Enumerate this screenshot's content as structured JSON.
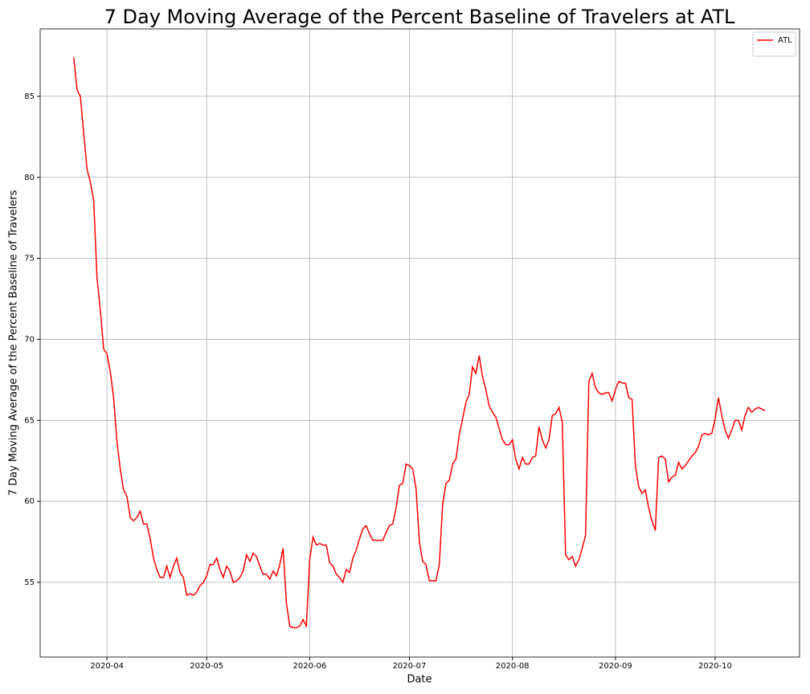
{
  "chart_data": {
    "type": "line",
    "title": "7 Day Moving Average of the Percent Baseline of Travelers at ATL",
    "x_label": "Date",
    "y_label": "7 Day Moving Average of the Percent Baseline of Travelers",
    "x": [
      82,
      83,
      84,
      85,
      86,
      87,
      88,
      89,
      90,
      91,
      92,
      93,
      94,
      95,
      96,
      97,
      98,
      99,
      100,
      101,
      102,
      103,
      104,
      105,
      106,
      107,
      108,
      109,
      110,
      111,
      112,
      113,
      114,
      115,
      116,
      117,
      118,
      119,
      120,
      121,
      122,
      123,
      124,
      125,
      126,
      127,
      128,
      129,
      130,
      131,
      132,
      133,
      134,
      135,
      136,
      137,
      138,
      139,
      140,
      141,
      142,
      143,
      144,
      145,
      146,
      147,
      148,
      149,
      150,
      151,
      152,
      153,
      154,
      155,
      156,
      157,
      158,
      159,
      160,
      161,
      162,
      163,
      164,
      165,
      166,
      167,
      168,
      169,
      170,
      171,
      172,
      173,
      174,
      175,
      176,
      177,
      178,
      179,
      180,
      181,
      182,
      183,
      184,
      185,
      186,
      187,
      188,
      189,
      190,
      191,
      192,
      193,
      194,
      195,
      196,
      197,
      198,
      199,
      200,
      201,
      202,
      203,
      204,
      205,
      206,
      207,
      208,
      209,
      210,
      211,
      212,
      213,
      214,
      215,
      216,
      217,
      218,
      219,
      220,
      221,
      222,
      223,
      224,
      225,
      226,
      227,
      228,
      229,
      230,
      231,
      232,
      233,
      234,
      235,
      236,
      237,
      238,
      239,
      240,
      241,
      242,
      243,
      244,
      245,
      246,
      247,
      248,
      249,
      250,
      251,
      252,
      253,
      254,
      255,
      256,
      257,
      258,
      259,
      260,
      261,
      262,
      263,
      264,
      265,
      266,
      267,
      268,
      269,
      270,
      271,
      272,
      273,
      274,
      275,
      276,
      277,
      278,
      279,
      280,
      281,
      282,
      283,
      284,
      285,
      286,
      287,
      288,
      289,
      290
    ],
    "series": [
      {
        "name": "ATL",
        "color": "#ff0000",
        "values": [
          87.4,
          85.4,
          85.0,
          82.7,
          80.5,
          79.7,
          78.6,
          73.8,
          71.8,
          69.4,
          69.1,
          68.0,
          66.4,
          63.7,
          62.0,
          60.7,
          60.3,
          59.0,
          58.8,
          59.0,
          59.4,
          58.6,
          58.6,
          57.7,
          56.5,
          55.8,
          55.3,
          55.3,
          56.0,
          55.3,
          56.0,
          56.5,
          55.6,
          55.3,
          54.2,
          54.3,
          54.2,
          54.4,
          54.8,
          55.0,
          55.4,
          56.1,
          56.1,
          56.5,
          55.8,
          55.3,
          56.0,
          55.7,
          55.0,
          55.1,
          55.3,
          55.7,
          56.7,
          56.3,
          56.8,
          56.6,
          56.0,
          55.5,
          55.5,
          55.2,
          55.7,
          55.4,
          56.1,
          57.1,
          53.7,
          52.3,
          52.2,
          52.2,
          52.3,
          52.7,
          52.3,
          56.4,
          57.8,
          57.3,
          57.4,
          57.3,
          57.3,
          56.2,
          56.0,
          55.5,
          55.3,
          55.0,
          55.8,
          55.6,
          56.5,
          57.0,
          57.7,
          58.3,
          58.5,
          58.0,
          57.6,
          57.6,
          57.6,
          57.6,
          58.1,
          58.5,
          58.6,
          59.6,
          61.0,
          61.1,
          62.3,
          62.2,
          62.0,
          60.8,
          57.5,
          56.3,
          56.1,
          55.1,
          55.1,
          55.1,
          56.1,
          59.8,
          61.1,
          61.3,
          62.3,
          62.6,
          64.1,
          65.1,
          66.1,
          66.6,
          68.3,
          67.9,
          69.0,
          67.7,
          66.9,
          65.9,
          65.5,
          65.2,
          64.5,
          63.8,
          63.5,
          63.5,
          63.8,
          62.6,
          62.0,
          62.7,
          62.3,
          62.3,
          62.7,
          62.8,
          64.6,
          63.8,
          63.3,
          63.8,
          65.3,
          65.4,
          65.8,
          64.9,
          56.7,
          56.4,
          56.6,
          56.0,
          56.4,
          57.1,
          57.9,
          67.4,
          67.9,
          67.0,
          66.7,
          66.6,
          66.7,
          66.7,
          66.2,
          66.9,
          67.4,
          67.3,
          67.3,
          66.4,
          66.3,
          62.2,
          60.9,
          60.5,
          60.7,
          59.6,
          58.8,
          58.2,
          62.7,
          62.8,
          62.6,
          61.2,
          61.5,
          61.6,
          62.4,
          62.0,
          62.2,
          62.5,
          62.8,
          63.0,
          63.4,
          64.1,
          64.2,
          64.1,
          64.2,
          65.1,
          66.4,
          65.3,
          64.4,
          63.9,
          64.4,
          65.0,
          65.0,
          64.4,
          65.3,
          65.8,
          65.5,
          65.7,
          65.8,
          65.7,
          65.6
        ]
      }
    ],
    "xlim": [
      71.9,
      300.4
    ],
    "xticks": [
      {
        "value": 92,
        "label": "2020-04"
      },
      {
        "value": 122,
        "label": "2020-05"
      },
      {
        "value": 153,
        "label": "2020-06"
      },
      {
        "value": 183,
        "label": "2020-07"
      },
      {
        "value": 214,
        "label": "2020-08"
      },
      {
        "value": 245,
        "label": "2020-09"
      },
      {
        "value": 275,
        "label": "2020-10"
      }
    ],
    "ylim": [
      50.39,
      89.16
    ],
    "yticks": [
      55,
      60,
      65,
      70,
      75,
      80,
      85
    ],
    "grid": true,
    "legend": "upper right"
  }
}
